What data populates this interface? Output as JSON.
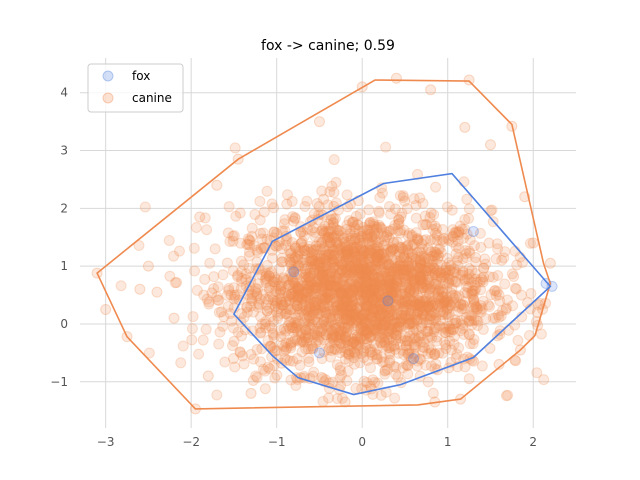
{
  "chart_data": {
    "type": "scatter",
    "title": "fox -> canine; 0.59",
    "xlabel": "",
    "ylabel": "",
    "xlim": [
      -3.3,
      2.5
    ],
    "ylim": [
      -1.8,
      4.6
    ],
    "xticks": [
      -3,
      -2,
      -1,
      0,
      1,
      2
    ],
    "yticks": [
      -1,
      0,
      1,
      2,
      3,
      4
    ],
    "grid": true,
    "legend": {
      "placement": "top-left",
      "entries": [
        "fox",
        "canine"
      ]
    },
    "colors": {
      "fox": "#4f7fdf",
      "canine": "#ef8a4f",
      "grid": "#d8d8d8",
      "tick": "#808080"
    },
    "series": [
      {
        "name": "fox",
        "points": [
          [
            2.22,
            0.65
          ],
          [
            2.15,
            0.7
          ],
          [
            1.3,
            1.6
          ],
          [
            0.3,
            0.4
          ],
          [
            -0.8,
            0.9
          ],
          [
            0.6,
            -0.6
          ],
          [
            -0.5,
            -0.5
          ]
        ],
        "hull": [
          [
            -1.05,
            1.43
          ],
          [
            0.25,
            2.43
          ],
          [
            1.05,
            2.6
          ],
          [
            2.2,
            0.65
          ],
          [
            1.3,
            -0.58
          ],
          [
            0.45,
            -1.05
          ],
          [
            -0.1,
            -1.22
          ],
          [
            -0.75,
            -0.93
          ],
          [
            -1.05,
            -0.55
          ],
          [
            -1.5,
            0.17
          ]
        ]
      },
      {
        "name": "canine",
        "points": [
          [
            -3.1,
            0.88
          ],
          [
            -2.75,
            -0.22
          ],
          [
            -1.95,
            -1.47
          ],
          [
            1.15,
            -1.3
          ],
          [
            1.85,
            -0.45
          ],
          [
            2.2,
            1.05
          ],
          [
            1.75,
            3.42
          ],
          [
            1.25,
            4.22
          ],
          [
            0.4,
            4.25
          ],
          [
            -1.45,
            2.85
          ],
          [
            -2.5,
            1.0
          ],
          [
            -2.4,
            0.55
          ],
          [
            -2.2,
            0.1
          ],
          [
            -1.9,
            1.85
          ],
          [
            -1.7,
            2.4
          ],
          [
            1.5,
            3.1
          ],
          [
            1.9,
            2.2
          ],
          [
            2.0,
            1.4
          ],
          [
            2.05,
            0.2
          ],
          [
            1.6,
            -0.7
          ],
          [
            0.85,
            -1.35
          ],
          [
            -0.2,
            -1.35
          ],
          [
            -1.3,
            -1.2
          ],
          [
            -1.8,
            -0.9
          ],
          [
            0.0,
            4.1
          ],
          [
            -0.5,
            3.5
          ],
          [
            1.2,
            3.4
          ],
          [
            0.8,
            4.05
          ],
          [
            -3.0,
            0.25
          ],
          [
            -2.6,
            0.6
          ]
        ],
        "hull": [
          [
            -3.1,
            0.88
          ],
          [
            -1.45,
            2.85
          ],
          [
            0.15,
            4.22
          ],
          [
            1.25,
            4.2
          ],
          [
            1.75,
            3.45
          ],
          [
            2.12,
            1.05
          ],
          [
            2.2,
            0.7
          ],
          [
            2.02,
            -0.2
          ],
          [
            1.85,
            -0.45
          ],
          [
            1.15,
            -1.3
          ],
          [
            0.65,
            -1.4
          ],
          [
            -1.95,
            -1.47
          ],
          [
            -2.75,
            -0.22
          ]
        ]
      }
    ]
  }
}
